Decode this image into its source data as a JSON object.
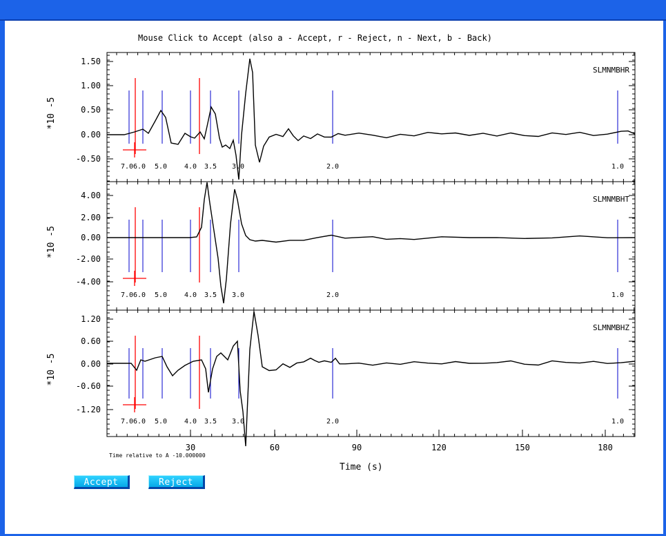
{
  "window": {
    "titlebar_color": "#1c63e8"
  },
  "plot": {
    "instruction": "Mouse Click to Accept (also a - Accept, r - Reject, n - Next, b - Back)",
    "time_note": "Time relative to A -10.000000",
    "xlabel": "Time (s)",
    "x_ticks": [
      "30",
      "60",
      "90",
      "120",
      "150",
      "180"
    ],
    "y_scale_label": "*10 -5",
    "phase_label_color": "#000000",
    "phase_line_color": "#0000cc",
    "pick_color": "#ff0000",
    "phase_labels": [
      "7.0",
      "6.0",
      "5.0",
      "4.0",
      "3.5",
      "3.0",
      "2.0",
      "1.0"
    ],
    "panels": [
      {
        "channel": "SLMNMBHR",
        "y_ticks": [
          "1.50",
          "1.00",
          "0.50",
          "0.00",
          "-0.50"
        ]
      },
      {
        "channel": "SLMNMBHT",
        "y_ticks": [
          "4.00",
          "2.00",
          "0.00",
          "-2.00",
          "-4.00"
        ]
      },
      {
        "channel": "SLMNMBHZ",
        "y_ticks": [
          "1.20",
          "0.60",
          "0.00",
          "-0.60",
          "-1.20"
        ]
      }
    ]
  },
  "buttons": {
    "accept": "Accept",
    "reject": "Reject"
  }
}
